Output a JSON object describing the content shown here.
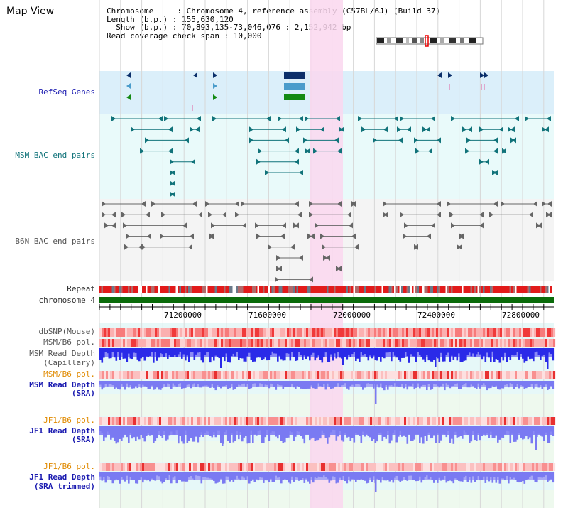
{
  "app_title": "Map View",
  "info": {
    "line1": "Chromosome     : Chromosome 4, reference assembly (C57BL/6J) (Build 37)",
    "line2": "Length (b.p.) : 155,630,120",
    "line3": "  Show (b.p.) : 70,893,135-73,046,076 : 2,152,942 bp",
    "line4": "Read coverage check span : 10,000"
  },
  "tracks": {
    "refseq": "RefSeq Genes",
    "msm_bac": "MSM BAC end pairs",
    "b6n_bac": "B6N BAC end pairs",
    "repeat": "Repeat",
    "chromosome": "chromosome 4",
    "dbsnp": "dbSNP(Mouse)",
    "msm_b6_pol_1": "MSM/B6 pol.",
    "msm_read_depth_cap_1": "MSM Read Depth",
    "msm_read_depth_cap_2": "(Capillary)",
    "msm_b6_pol_2": "MSM/B6 pol.",
    "msm_read_depth_sra_1": "MSM Read Depth",
    "msm_read_depth_sra_2": "(SRA)",
    "jf1_b6_pol_1": "JF1/B6 pol.",
    "jf1_read_depth_sra_1": "JF1 Read Depth",
    "jf1_read_depth_sra_2": "(SRA)",
    "jf1_b6_pol_2": "JF1/B6 pol.",
    "jf1_read_depth_trim_1": "JF1 Read Depth",
    "jf1_read_depth_trim_2": "(SRA trimmed)"
  },
  "axis_ticks": [
    "71200000",
    "71600000",
    "72000000",
    "72400000",
    "72800000"
  ],
  "colors": {
    "refseq_bg": "#dbeffa",
    "bac_bg": "#e9fafa",
    "highlight": "#fad7ef",
    "gene_dark": "#0a2f6a",
    "gene_mid": "#4a9ccb",
    "gene_green": "#138a13",
    "msm_feature": "#11737a",
    "b6n_feature": "#666666",
    "chromosome_bar": "#0a6b0a",
    "depth_blue": "#2a2ae8",
    "depth_light": "#7a7af2",
    "pol_red": "#f04040"
  }
}
